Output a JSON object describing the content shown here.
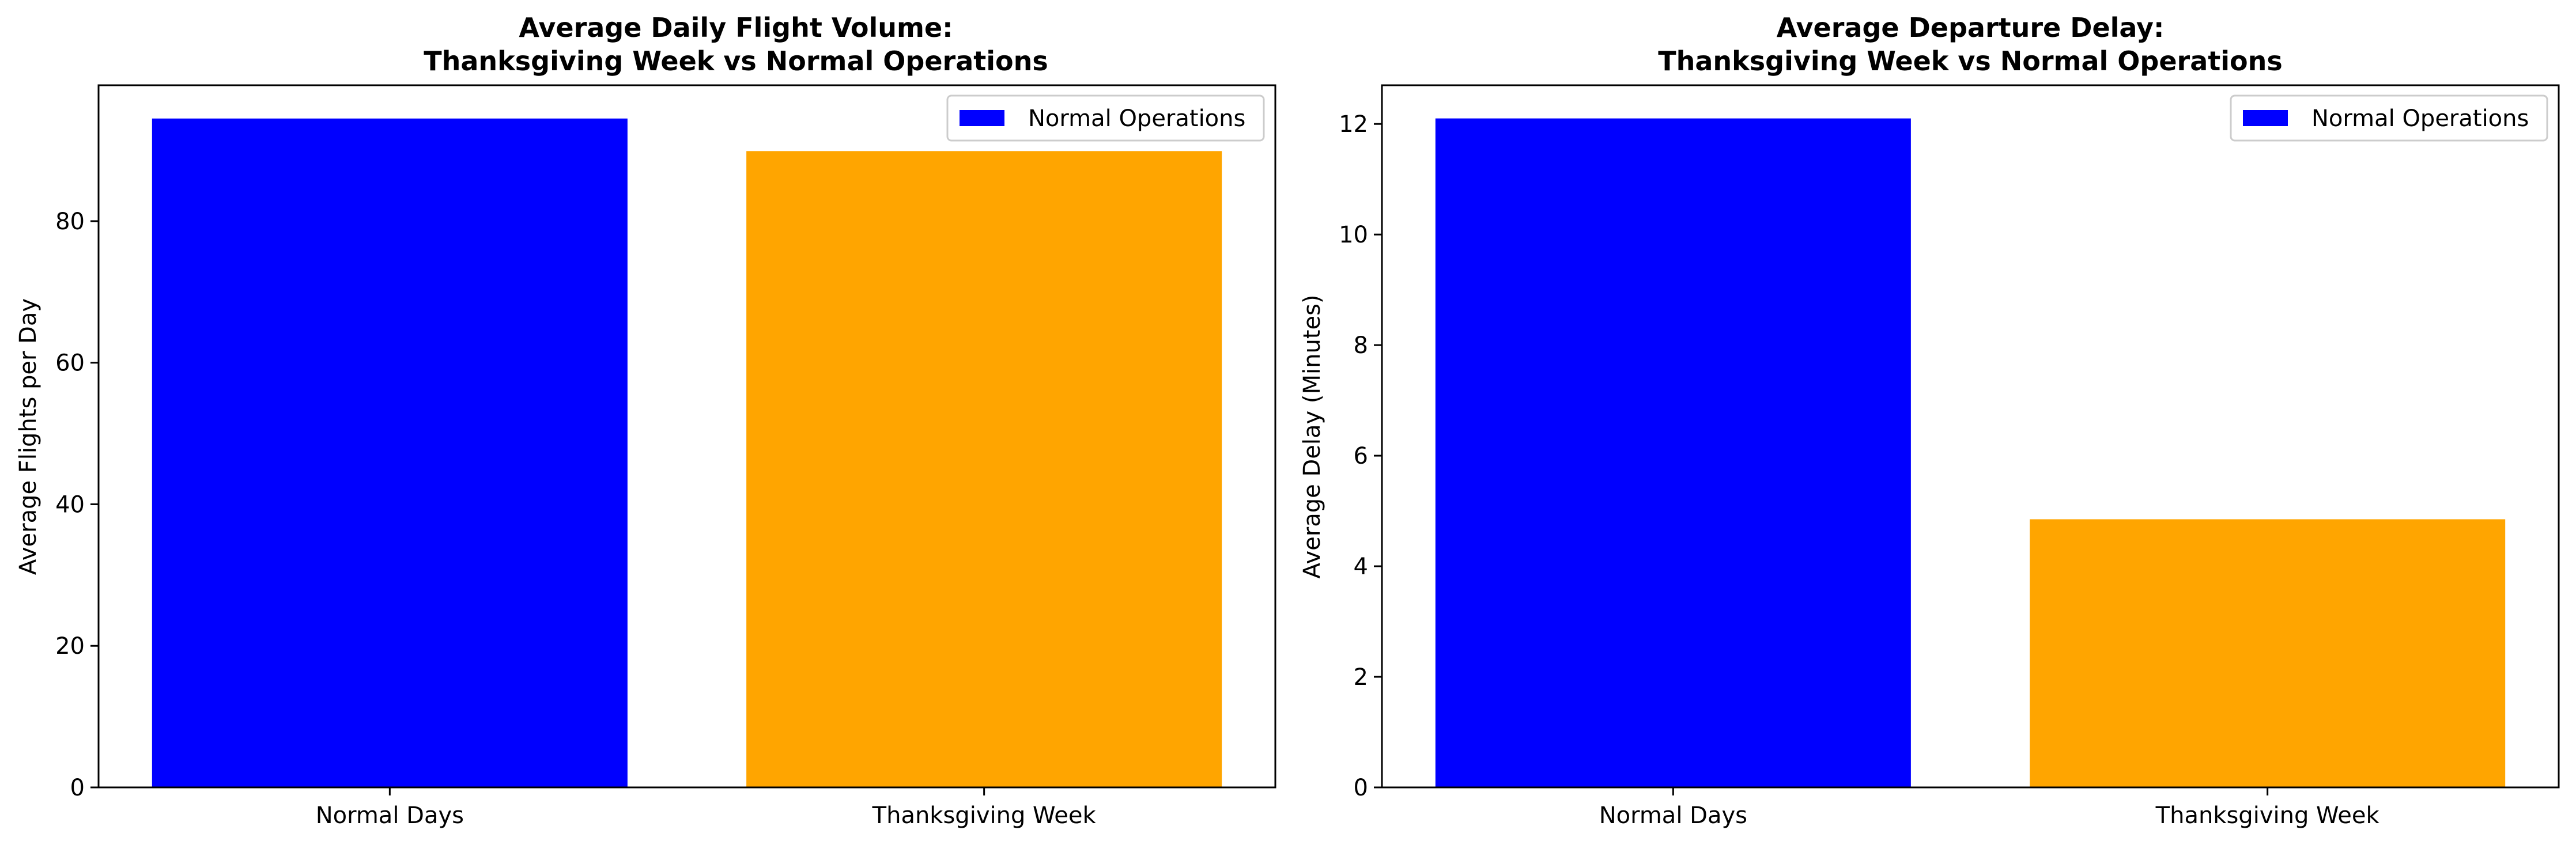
{
  "chart_data": [
    {
      "type": "bar",
      "title": [
        "Average Daily Flight Volume:",
        "Thanksgiving Week vs Normal Operations"
      ],
      "xlabel": "",
      "ylabel": "Average Flights per Day",
      "categories": [
        "Normal Days",
        "Thanksgiving Week"
      ],
      "values": [
        94.5,
        89.9
      ],
      "bar_colors": [
        "#0000ff",
        "#ffa500"
      ],
      "ylim": [
        0,
        99.2
      ],
      "yticks": [
        0,
        20,
        40,
        60,
        80
      ],
      "grid": false,
      "legend": {
        "placement": "upper-right",
        "entries": [
          {
            "label": "Normal Operations",
            "color": "#0000ff"
          }
        ]
      }
    },
    {
      "type": "bar",
      "title": [
        "Average Departure Delay:",
        "Thanksgiving Week vs Normal Operations"
      ],
      "xlabel": "",
      "ylabel": "Average Delay (Minutes)",
      "categories": [
        "Normal Days",
        "Thanksgiving Week"
      ],
      "values": [
        12.1,
        4.85
      ],
      "bar_colors": [
        "#0000ff",
        "#ffa500"
      ],
      "ylim": [
        0,
        12.7
      ],
      "yticks": [
        0,
        2,
        4,
        6,
        8,
        10,
        12
      ],
      "grid": false,
      "legend": {
        "placement": "upper-right",
        "entries": [
          {
            "label": "Normal Operations",
            "color": "#0000ff"
          }
        ]
      }
    }
  ]
}
